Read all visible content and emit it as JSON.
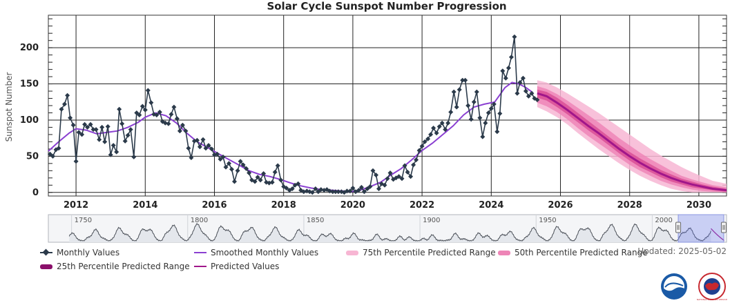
{
  "chart_data": {
    "type": "line",
    "title": "Solar Cycle Sunspot Number Progression",
    "ylabel": "Sunspot Number",
    "xlim": [
      2011.2,
      2030.8
    ],
    "ylim": [
      -5,
      245
    ],
    "x_ticks": [
      "2012",
      "2014",
      "2016",
      "2018",
      "2020",
      "2022",
      "2024",
      "2026",
      "2028",
      "2030"
    ],
    "y_ticks": [
      "0",
      "50",
      "100",
      "150",
      "200"
    ],
    "series": [
      {
        "name": "Monthly Values",
        "color": "#2b3a4a",
        "marker": "diamond",
        "x": [
          2011.25,
          2011.33,
          2011.42,
          2011.5,
          2011.58,
          2011.67,
          2011.75,
          2011.83,
          2011.92,
          2012.0,
          2012.08,
          2012.17,
          2012.25,
          2012.33,
          2012.42,
          2012.5,
          2012.58,
          2012.67,
          2012.75,
          2012.83,
          2012.92,
          2013.0,
          2013.08,
          2013.17,
          2013.25,
          2013.33,
          2013.42,
          2013.5,
          2013.58,
          2013.67,
          2013.75,
          2013.83,
          2013.92,
          2014.0,
          2014.08,
          2014.17,
          2014.25,
          2014.33,
          2014.42,
          2014.5,
          2014.58,
          2014.67,
          2014.75,
          2014.83,
          2014.92,
          2015.0,
          2015.08,
          2015.17,
          2015.25,
          2015.33,
          2015.42,
          2015.5,
          2015.58,
          2015.67,
          2015.75,
          2015.83,
          2015.92,
          2016.0,
          2016.08,
          2016.17,
          2016.25,
          2016.33,
          2016.42,
          2016.5,
          2016.58,
          2016.67,
          2016.75,
          2016.83,
          2016.92,
          2017.0,
          2017.08,
          2017.17,
          2017.25,
          2017.33,
          2017.42,
          2017.5,
          2017.58,
          2017.67,
          2017.75,
          2017.83,
          2017.92,
          2018.0,
          2018.08,
          2018.17,
          2018.25,
          2018.33,
          2018.42,
          2018.5,
          2018.58,
          2018.67,
          2018.75,
          2018.83,
          2018.92,
          2019.0,
          2019.08,
          2019.17,
          2019.25,
          2019.33,
          2019.42,
          2019.5,
          2019.58,
          2019.67,
          2019.75,
          2019.83,
          2019.92,
          2020.0,
          2020.08,
          2020.17,
          2020.25,
          2020.33,
          2020.42,
          2020.5,
          2020.58,
          2020.67,
          2020.75,
          2020.83,
          2020.92,
          2021.0,
          2021.08,
          2021.17,
          2021.25,
          2021.33,
          2021.42,
          2021.5,
          2021.58,
          2021.67,
          2021.75,
          2021.83,
          2021.92,
          2022.0,
          2022.08,
          2022.17,
          2022.25,
          2022.33,
          2022.42,
          2022.5,
          2022.58,
          2022.67,
          2022.75,
          2022.83,
          2022.92,
          2023.0,
          2023.08,
          2023.17,
          2023.25,
          2023.33,
          2023.42,
          2023.5,
          2023.58,
          2023.67,
          2023.75,
          2023.83,
          2023.92,
          2024.0,
          2024.08,
          2024.17,
          2024.25,
          2024.33,
          2024.42,
          2024.5,
          2024.58,
          2024.67,
          2024.75,
          2024.83,
          2024.92,
          2025.0,
          2025.08,
          2025.17,
          2025.25
        ],
        "y": [
          53,
          50,
          59,
          61,
          115,
          122,
          134,
          103,
          93,
          43,
          83,
          80,
          94,
          90,
          94,
          87,
          87,
          73,
          90,
          70,
          91,
          52,
          65,
          56,
          115,
          95,
          71,
          79,
          87,
          49,
          110,
          107,
          119,
          114,
          141,
          124,
          108,
          107,
          111,
          98,
          96,
          95,
          108,
          118,
          102,
          85,
          93,
          85,
          61,
          48,
          71,
          72,
          63,
          73,
          61,
          65,
          60,
          52,
          53,
          46,
          49,
          35,
          40,
          32,
          15,
          30,
          43,
          38,
          33,
          27,
          17,
          15,
          21,
          17,
          26,
          14,
          13,
          14,
          28,
          37,
          17,
          8,
          6,
          3,
          5,
          10,
          12,
          3,
          1,
          2,
          1,
          0,
          5,
          1,
          4,
          3,
          4,
          2,
          1,
          1,
          1,
          1,
          0,
          2,
          2,
          6,
          1,
          3,
          7,
          1,
          5,
          8,
          30,
          24,
          5,
          12,
          10,
          19,
          27,
          18,
          20,
          22,
          19,
          37,
          28,
          22,
          38,
          45,
          58,
          64,
          70,
          74,
          80,
          89,
          82,
          91,
          96,
          87,
          96,
          111,
          139,
          118,
          142,
          155,
          155,
          120,
          101,
          125,
          139,
          103,
          77,
          96,
          110,
          116,
          122,
          84,
          109,
          168,
          158,
          172,
          187,
          215,
          137,
          152,
          158,
          140,
          133,
          137,
          130
        ],
        "extra_points": {
          "x": [
            2025.33
          ],
          "y": [
            128
          ]
        }
      },
      {
        "name": "Smoothed Monthly Values",
        "color": "#8a3fd1",
        "x": [
          2011.2,
          2011.5,
          2011.8,
          2012.0,
          2012.3,
          2012.6,
          2012.9,
          2013.2,
          2013.5,
          2013.8,
          2014.0,
          2014.3,
          2014.6,
          2014.9,
          2015.2,
          2015.5,
          2015.8,
          2016.1,
          2016.4,
          2016.7,
          2017.0,
          2017.3,
          2017.6,
          2017.9,
          2018.2,
          2018.5,
          2018.8,
          2019.1,
          2019.4,
          2019.7,
          2019.95,
          2020.2,
          2020.5,
          2020.8,
          2021.1,
          2021.4,
          2021.7,
          2022.0,
          2022.3,
          2022.6,
          2022.9,
          2023.2,
          2023.5,
          2023.8,
          2024.1,
          2024.4,
          2024.6,
          2024.8,
          2025.0,
          2025.2
        ],
        "y": [
          57,
          70,
          82,
          88,
          86,
          81,
          83,
          85,
          90,
          97,
          104,
          110,
          106,
          96,
          82,
          70,
          62,
          54,
          46,
          38,
          30,
          25,
          22,
          18,
          13,
          9,
          6,
          4,
          3,
          2,
          1,
          3,
          8,
          14,
          24,
          33,
          45,
          58,
          68,
          80,
          92,
          107,
          118,
          122,
          125,
          145,
          152,
          150,
          145,
          138
        ]
      },
      {
        "name": "Predicted Values",
        "color": "#a0168a",
        "x": [
          2025.33,
          2025.6,
          2025.9,
          2026.2,
          2026.5,
          2026.8,
          2027.1,
          2027.4,
          2027.7,
          2028.0,
          2028.3,
          2028.6,
          2028.9,
          2029.2,
          2029.5,
          2029.8,
          2030.1,
          2030.4,
          2030.8
        ],
        "y": [
          137,
          133,
          124,
          114,
          103,
          92,
          82,
          71,
          60,
          50,
          41,
          33,
          26,
          20,
          15,
          11,
          8,
          5,
          3
        ]
      }
    ],
    "bands": [
      {
        "name": "75th Percentile Predicted Range",
        "color": "#f7b6d3",
        "lower": [
          118,
          112,
          104,
          94,
          82,
          71,
          60,
          50,
          40,
          31,
          23,
          16,
          10,
          5,
          2,
          0,
          0,
          0,
          0
        ],
        "upper": [
          155,
          152,
          145,
          137,
          128,
          119,
          110,
          100,
          90,
          80,
          70,
          60,
          51,
          43,
          35,
          28,
          22,
          16,
          12
        ]
      },
      {
        "name": "50th Percentile Predicted Range",
        "color": "#ee85b7",
        "lower": [
          124,
          119,
          111,
          101,
          89,
          78,
          68,
          58,
          48,
          38,
          30,
          23,
          16,
          11,
          7,
          4,
          2,
          1,
          0
        ],
        "upper": [
          147,
          143,
          136,
          127,
          117,
          107,
          97,
          86,
          75,
          65,
          55,
          46,
          38,
          30,
          23,
          18,
          14,
          10,
          7
        ]
      },
      {
        "name": "25th Percentile Predicted Range",
        "color": "#d94f97",
        "lower": [
          131,
          127,
          118,
          108,
          97,
          86,
          76,
          65,
          54,
          44,
          35,
          28,
          21,
          15,
          11,
          7,
          5,
          3,
          1
        ],
        "upper": [
          142,
          139,
          131,
          121,
          110,
          99,
          88,
          77,
          66,
          56,
          47,
          39,
          31,
          25,
          19,
          15,
          11,
          8,
          5
        ]
      }
    ],
    "grid": true
  },
  "navigator": {
    "ticks": [
      "1750",
      "1800",
      "1850",
      "1900",
      "1950",
      "2000"
    ]
  },
  "legend": {
    "monthly": "Monthly Values",
    "smoothed": "Smoothed Monthly Values",
    "p75": "75th Percentile Predicted Range",
    "p50": "50th Percentile Predicted Range",
    "p25": "25th Percentile Predicted Range",
    "predicted": "Predicted Values",
    "updated": "Updated: 2025-05-02"
  },
  "logos": {
    "noaa_text": "NOAA",
    "nws_text": "NATIONAL WEATHER SERVICE"
  }
}
